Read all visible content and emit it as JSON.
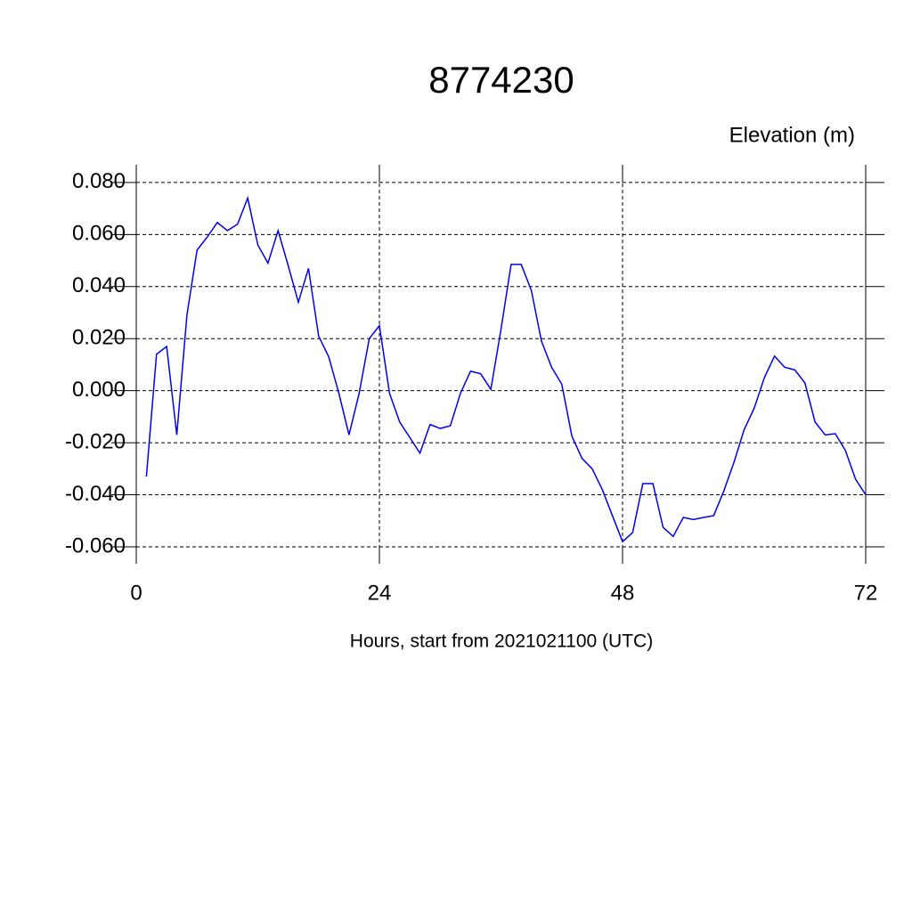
{
  "chart_data": {
    "type": "line",
    "title": "8774230",
    "subtitle": "Elevation (m)",
    "x_label": "Hours, start from 2021021100 (UTC)",
    "x": [
      1,
      2,
      3,
      4,
      5,
      6,
      7,
      8,
      9,
      10,
      11,
      12,
      13,
      14,
      15,
      16,
      17,
      18,
      19,
      20,
      21,
      22,
      23,
      24,
      25,
      26,
      27,
      28,
      29,
      30,
      31,
      32,
      33,
      34,
      35,
      36,
      37,
      38,
      39,
      40,
      41,
      42,
      43,
      44,
      45,
      46,
      47,
      48,
      49,
      50,
      51,
      52,
      53,
      54,
      55,
      56,
      57,
      58,
      59,
      60,
      61,
      62,
      63,
      64,
      65,
      66,
      67,
      68,
      69,
      70,
      71,
      72
    ],
    "series": [
      {
        "name": "Elevation",
        "color": "#0000ee",
        "values": [
          -0.033,
          0.014,
          0.017,
          -0.017,
          0.029,
          0.054,
          0.059,
          0.0646,
          0.0615,
          0.064,
          0.074,
          0.056,
          0.049,
          0.0615,
          0.048,
          0.034,
          0.047,
          0.021,
          0.013,
          -0.001,
          -0.017,
          -0.001,
          0.02,
          0.025,
          -0.001,
          -0.012,
          -0.018,
          -0.024,
          -0.013,
          -0.0145,
          -0.0135,
          -0.001,
          0.0075,
          0.0065,
          0.0005,
          0.0235,
          0.0485,
          0.0485,
          0.0385,
          0.019,
          0.009,
          0.0025,
          -0.0175,
          -0.026,
          -0.03,
          -0.038,
          -0.048,
          -0.058,
          -0.0545,
          -0.0357,
          -0.0357,
          -0.0525,
          -0.056,
          -0.0487,
          -0.0495,
          -0.0487,
          -0.048,
          -0.0385,
          -0.0275,
          -0.015,
          -0.0067,
          0.005,
          0.0133,
          0.009,
          0.008,
          0.003,
          -0.012,
          -0.017,
          -0.0165,
          -0.023,
          -0.034,
          -0.04
        ]
      }
    ],
    "xlim": [
      0,
      72
    ],
    "xticks": [
      0,
      24,
      48,
      72
    ],
    "ylim": [
      -0.0665,
      0.0868
    ],
    "yticks": [
      {
        "value": -0.06,
        "label": "-0.060"
      },
      {
        "value": -0.04,
        "label": "-0.040"
      },
      {
        "value": -0.02,
        "label": "-0.020"
      },
      {
        "value": 0,
        "label": "0.000"
      },
      {
        "value": 0.02,
        "label": "0.020"
      },
      {
        "value": 0.04,
        "label": "0.040"
      },
      {
        "value": 0.06,
        "label": "0.060"
      },
      {
        "value": 0.08,
        "label": "0.080"
      }
    ],
    "grid": true
  }
}
